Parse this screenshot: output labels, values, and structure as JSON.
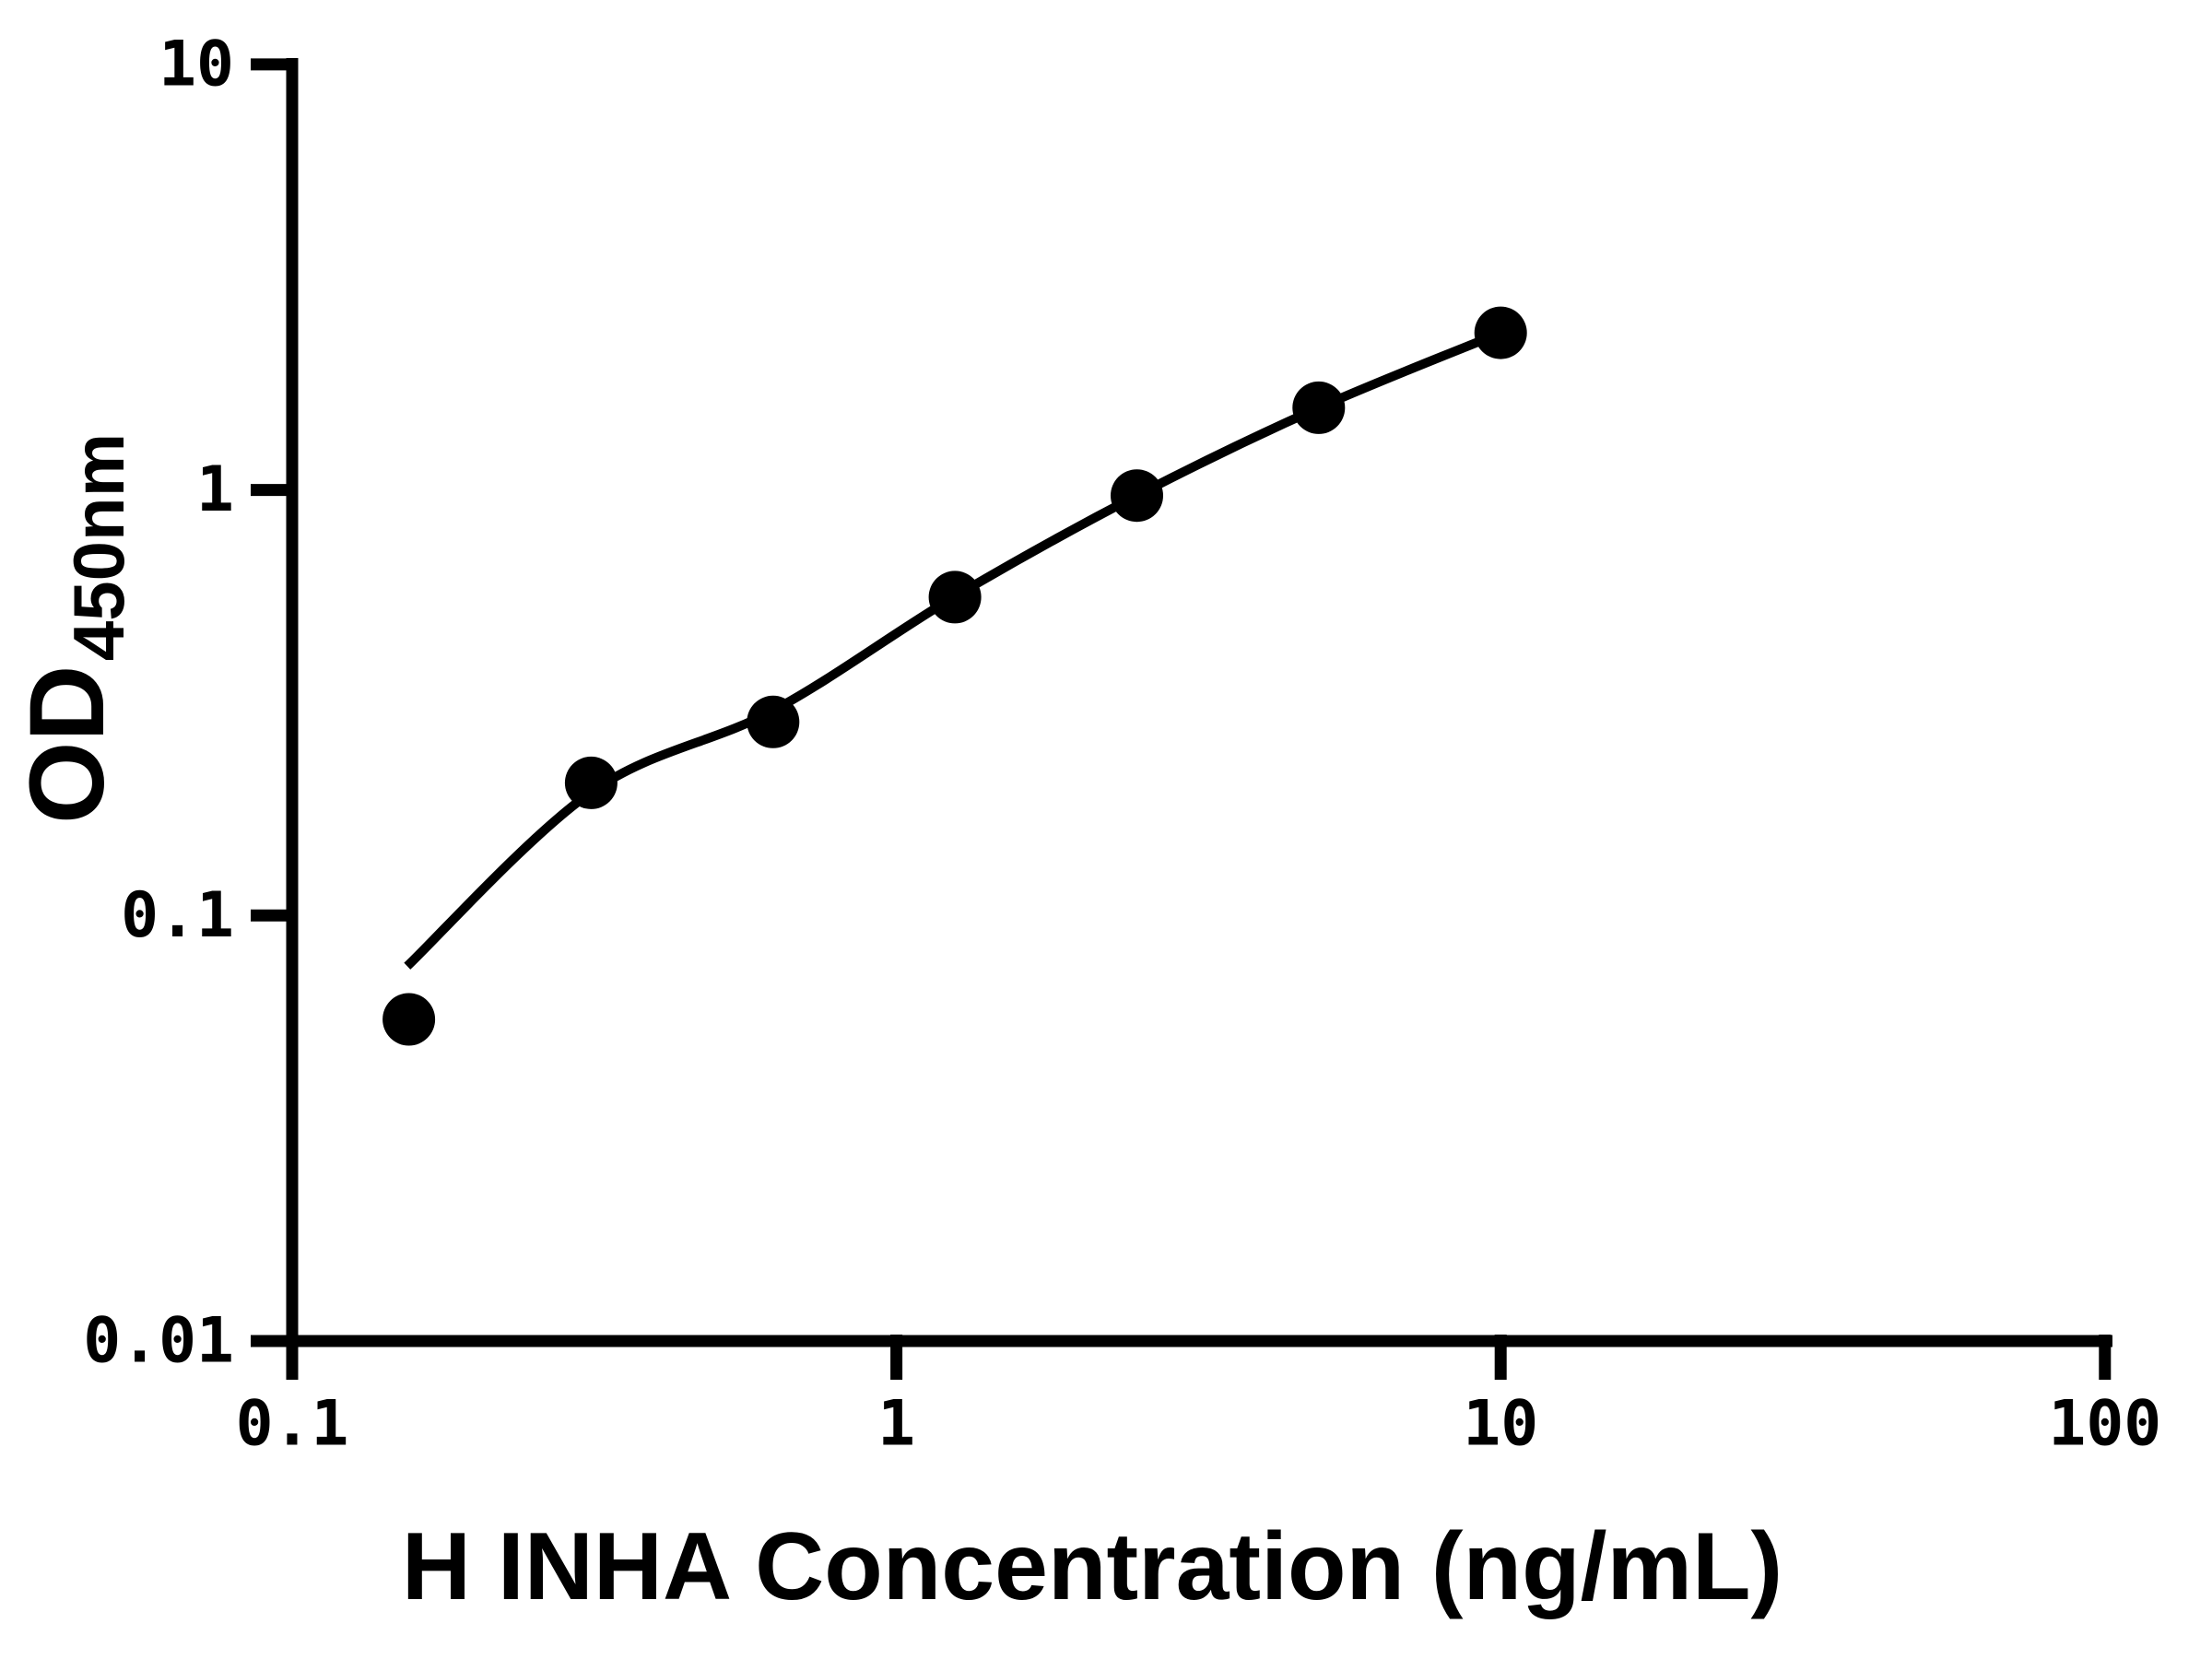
{
  "chart_data": {
    "type": "scatter",
    "title": "",
    "xlabel": "H INHA Concentration (ng/mL)",
    "ylabel_main": "OD",
    "ylabel_sub": "450nm",
    "x_scale": "log",
    "y_scale": "log",
    "xlim": [
      0.1,
      100
    ],
    "ylim": [
      0.01,
      10
    ],
    "grid": false,
    "legend": false,
    "x_ticks": [
      {
        "value": 0.1,
        "label": "0.1"
      },
      {
        "value": 1,
        "label": "1"
      },
      {
        "value": 10,
        "label": "10"
      },
      {
        "value": 100,
        "label": "100"
      }
    ],
    "y_ticks": [
      {
        "value": 0.01,
        "label": "0.01"
      },
      {
        "value": 0.1,
        "label": "0.1"
      },
      {
        "value": 1,
        "label": "1"
      },
      {
        "value": 10,
        "label": "10"
      }
    ],
    "series": [
      {
        "marker": "filled-circle",
        "color": "#000000",
        "points": [
          {
            "x": 0.156,
            "od": 0.057
          },
          {
            "x": 0.3125,
            "od": 0.205
          },
          {
            "x": 0.625,
            "od": 0.285
          },
          {
            "x": 1.25,
            "od": 0.56
          },
          {
            "x": 2.5,
            "od": 0.97
          },
          {
            "x": 5,
            "od": 1.56
          },
          {
            "x": 10,
            "od": 2.34
          }
        ]
      }
    ],
    "fit_curve": {
      "color": "#000000",
      "samples": [
        {
          "x": 0.155,
          "od": 0.076
        },
        {
          "x": 0.3125,
          "od": 0.195
        },
        {
          "x": 0.625,
          "od": 0.303
        },
        {
          "x": 1.25,
          "od": 0.562
        },
        {
          "x": 2.5,
          "od": 0.97
        },
        {
          "x": 5,
          "od": 1.56
        },
        {
          "x": 10,
          "od": 2.34
        }
      ]
    }
  }
}
